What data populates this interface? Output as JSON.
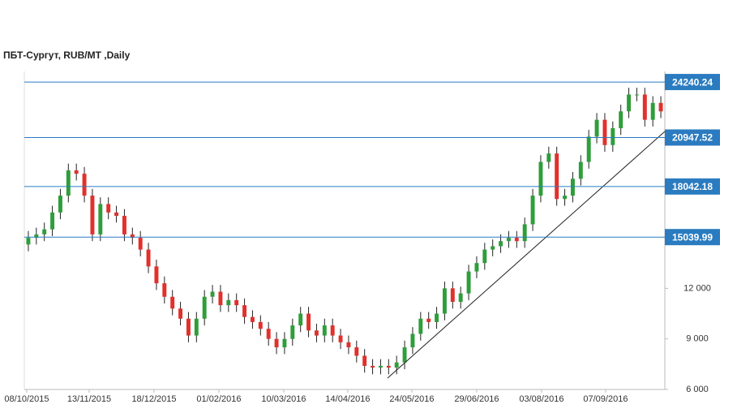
{
  "chart_data": {
    "type": "candlestick",
    "title": "ПБТ-Сургут,  RUB/MT ,Daily",
    "open": [
      14600,
      15000,
      15200,
      15500,
      16500,
      17500,
      19000,
      18800,
      17500,
      15200,
      17000,
      16500,
      16300,
      15200,
      15000,
      14300,
      13300,
      12300,
      11500,
      10800,
      10200,
      9200,
      10200,
      11500,
      11800,
      11000,
      11300,
      11000,
      10300,
      10000,
      9600,
      9000,
      8500,
      9000,
      9800,
      10500,
      9500,
      9200,
      9800,
      9200,
      8800,
      8500,
      8000,
      7400,
      7300,
      7400,
      7300,
      7600,
      8500,
      9300,
      10200,
      10000,
      10500,
      12000,
      11200,
      11700,
      13000,
      13500,
      14300,
      14500,
      14800,
      15000,
      14800,
      15800,
      17500,
      19500,
      20000,
      17300,
      17500,
      18500,
      19500,
      21000,
      22000,
      20500,
      21500,
      22500,
      23500,
      23500,
      22000,
      23000
    ],
    "high": [
      15400,
      15600,
      15900,
      16900,
      17900,
      19400,
      19400,
      19200,
      17900,
      17400,
      17400,
      16900,
      16700,
      15600,
      15400,
      14700,
      13700,
      12700,
      11900,
      11200,
      10600,
      10600,
      11900,
      12200,
      12200,
      11700,
      11700,
      11400,
      10700,
      10400,
      10000,
      9400,
      9400,
      10200,
      10900,
      10900,
      9900,
      10200,
      10200,
      9600,
      9200,
      8900,
      8400,
      7800,
      7800,
      7800,
      8000,
      8900,
      9700,
      10600,
      10600,
      10900,
      12400,
      12400,
      12100,
      13400,
      13900,
      14700,
      14900,
      15200,
      15400,
      15400,
      16200,
      17900,
      19900,
      20400,
      20400,
      17900,
      18900,
      19900,
      21400,
      22400,
      22400,
      21900,
      22900,
      23900,
      23900,
      23900,
      23400,
      23400
    ],
    "low": [
      14200,
      14600,
      14800,
      15100,
      16100,
      17100,
      18400,
      17100,
      14800,
      14800,
      16100,
      15900,
      14800,
      14600,
      13900,
      12900,
      11900,
      11100,
      10400,
      9800,
      8800,
      8800,
      9800,
      11100,
      10600,
      10600,
      10600,
      9900,
      9600,
      9200,
      8600,
      8100,
      8100,
      8600,
      9400,
      9100,
      8800,
      8800,
      8800,
      8400,
      8100,
      7600,
      7000,
      6900,
      6900,
      6900,
      6900,
      7200,
      8100,
      8900,
      9600,
      9600,
      10100,
      10800,
      10800,
      11300,
      12600,
      13100,
      13900,
      14100,
      14400,
      14400,
      14400,
      15400,
      17100,
      19100,
      16900,
      16900,
      17100,
      18100,
      19100,
      20600,
      20100,
      20100,
      21100,
      22100,
      23100,
      21600,
      21600,
      22100
    ],
    "close": [
      15000,
      15200,
      15500,
      16500,
      17500,
      19000,
      18800,
      17500,
      15200,
      17000,
      16500,
      16300,
      15200,
      15000,
      14300,
      13300,
      12300,
      11500,
      10800,
      10200,
      9200,
      10200,
      11500,
      11800,
      11000,
      11300,
      11000,
      10300,
      10000,
      9600,
      9000,
      8500,
      9000,
      9800,
      10500,
      9500,
      9200,
      9800,
      9200,
      8800,
      8500,
      8000,
      7400,
      7300,
      7400,
      7300,
      7600,
      8500,
      9300,
      10200,
      10000,
      10500,
      12000,
      11200,
      11700,
      13000,
      13500,
      14300,
      14500,
      14800,
      15000,
      14800,
      15800,
      17500,
      19500,
      20000,
      17300,
      17500,
      18500,
      19500,
      21000,
      22000,
      20500,
      21500,
      22500,
      23500,
      23500,
      22000,
      23000,
      22500
    ],
    "up_color": "#2e9e3a",
    "down_color": "#e2302c",
    "xlim": [
      0,
      80
    ],
    "xticks": [
      {
        "value": 0.3,
        "label": "08/10/2015"
      },
      {
        "value": 8.1,
        "label": "13/11/2015"
      },
      {
        "value": 16.2,
        "label": "18/12/2015"
      },
      {
        "value": 24.3,
        "label": "01/02/2016"
      },
      {
        "value": 32.4,
        "label": "10/03/2016"
      },
      {
        "value": 40.4,
        "label": "14/04/2016"
      },
      {
        "value": 48.4,
        "label": "24/05/2016"
      },
      {
        "value": 56.5,
        "label": "29/06/2016"
      },
      {
        "value": 64.6,
        "label": "03/08/2016"
      },
      {
        "value": 72.6,
        "label": "07/09/2016"
      }
    ],
    "ylim": [
      6000,
      24870
    ],
    "yticks": [
      {
        "value": 6000,
        "label": "6 000"
      },
      {
        "value": 9000,
        "label": "9 000"
      },
      {
        "value": 12000,
        "label": "12 000"
      }
    ],
    "levels": [
      24240.24,
      20947.52,
      18042.18,
      15039.99
    ],
    "level_color": "#2a7bc0"
  }
}
